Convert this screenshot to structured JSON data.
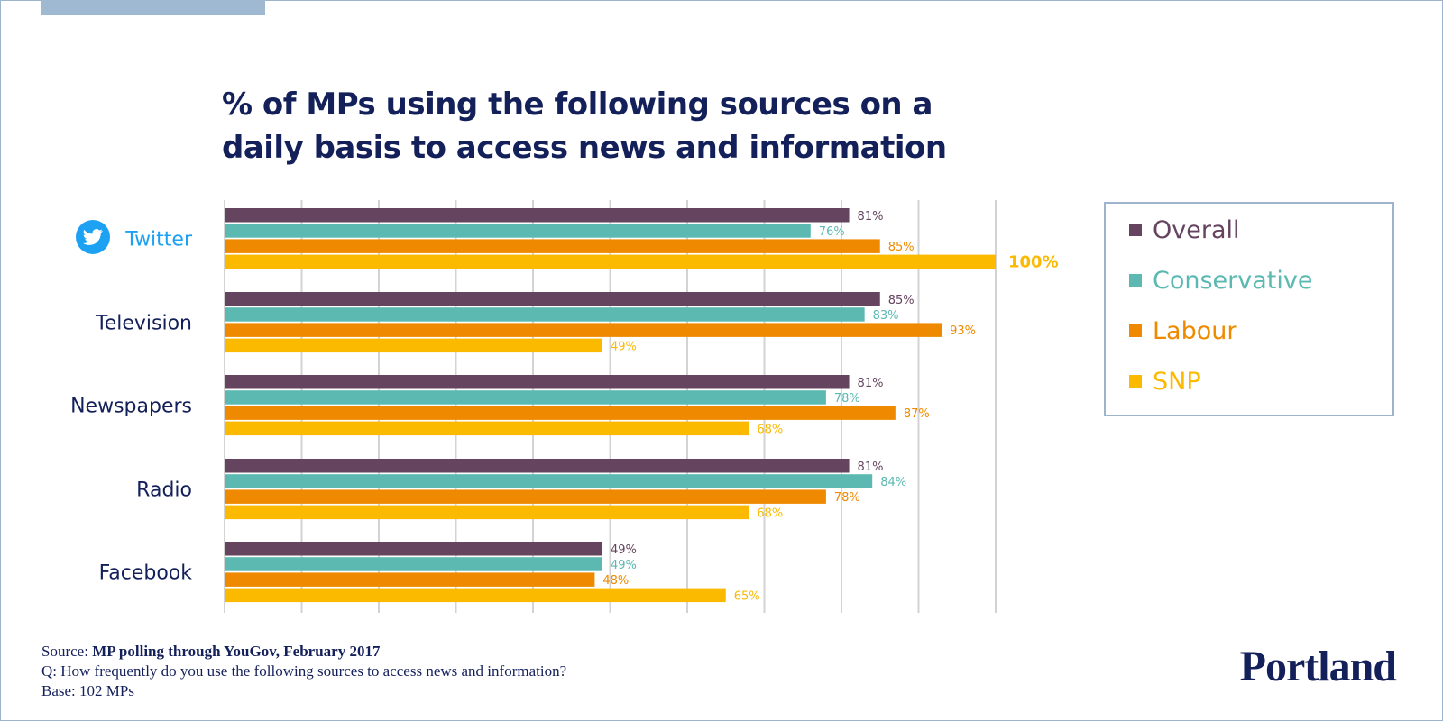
{
  "title": {
    "line1": "% of MPs using the following sources on a",
    "line2": "daily basis to access news and information"
  },
  "colors": {
    "Overall": "#65445f",
    "Conservative": "#5bb9b2",
    "Labour": "#ef8a00",
    "SNP": "#fbb900",
    "grid": "#d3d3d3",
    "twitter": "#1da1f2",
    "navy": "#14205a"
  },
  "chart_data": {
    "type": "bar",
    "orientation": "horizontal",
    "title": "% of MPs using the following sources on a daily basis to access news and information",
    "categories": [
      "Twitter",
      "Television",
      "Newspapers",
      "Radio",
      "Facebook"
    ],
    "series": [
      {
        "name": "Overall",
        "values": [
          81,
          85,
          81,
          81,
          49
        ]
      },
      {
        "name": "Conservative",
        "values": [
          76,
          83,
          78,
          84,
          49
        ]
      },
      {
        "name": "Labour",
        "values": [
          85,
          93,
          87,
          78,
          48
        ]
      },
      {
        "name": "SNP",
        "values": [
          100,
          49,
          68,
          68,
          65
        ]
      }
    ],
    "value_suffix": "%",
    "xlim": [
      0,
      100
    ],
    "grid": true,
    "legend": "right",
    "xlabel": "",
    "ylabel": ""
  },
  "legend": {
    "items": [
      {
        "label": "Overall",
        "color": "#65445f"
      },
      {
        "label": "Conservative",
        "color": "#5bb9b2"
      },
      {
        "label": "Labour",
        "color": "#ef8a00"
      },
      {
        "label": "SNP",
        "color": "#fbb900"
      }
    ]
  },
  "footer": {
    "source_prefix": "Source: ",
    "source_text": "MP polling through YouGov, February 2017",
    "question": "Q: How frequently do you use the following sources to access news and information?",
    "base": "Base: 102 MPs"
  },
  "brand": {
    "name": "Portland"
  }
}
